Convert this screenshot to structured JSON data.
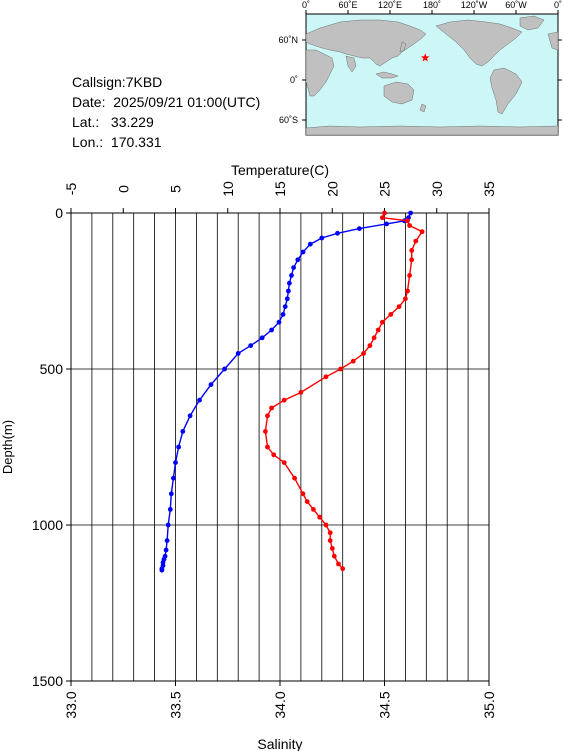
{
  "info": {
    "callsign_line": "Callsign:7KBD",
    "date_line": "Date:  2025/09/21 01:00(UTC)",
    "lat_line": "Lat.:   33.229",
    "lon_line": "Lon.:  170.331"
  },
  "map": {
    "top_labels": [
      "0˚",
      "60˚E",
      "120˚E",
      "180˚",
      "120˚W",
      "60˚W",
      "0˚"
    ],
    "side_labels": [
      "60˚N",
      "0˚",
      "60˚S"
    ],
    "station": {
      "lat": 33.229,
      "lon": 170.331
    },
    "colors": {
      "ocean": "#cdf7f7",
      "land": "#c0c0c0",
      "marker": "#ff0000"
    }
  },
  "chart_data": {
    "type": "line",
    "ylabel": "Depth(m)",
    "ylim": [
      1500,
      0
    ],
    "yticks": [
      0,
      500,
      1000,
      1500
    ],
    "x_top": {
      "label": "Temperature(C)",
      "lim": [
        -5,
        35
      ],
      "ticks": [
        -5,
        0,
        5,
        10,
        15,
        20,
        25,
        30,
        35
      ]
    },
    "x_bottom": {
      "label": "Salinity",
      "lim": [
        33.0,
        35.0
      ],
      "ticks": [
        "33.0",
        "33.5",
        "34.0",
        "34.5",
        "35.0"
      ]
    },
    "grid": true,
    "series": [
      {
        "color": "#0000ff",
        "axis": "top",
        "x": [
          27.5,
          27.3,
          26.9,
          25.2,
          22.6,
          20.5,
          19.0,
          17.9,
          17.2,
          16.7,
          16.3,
          16.1,
          15.9,
          15.8,
          15.7,
          15.5,
          15.3,
          14.9,
          14.2,
          13.3,
          12.2,
          11.0,
          9.7,
          8.4,
          7.3,
          6.4,
          5.7,
          5.3,
          5.0,
          4.8,
          4.6,
          4.5,
          4.3,
          4.2,
          4.1,
          4.0,
          3.9,
          3.8,
          3.8,
          3.7,
          3.7
        ],
        "y": [
          0,
          15,
          25,
          35,
          50,
          65,
          80,
          100,
          125,
          150,
          175,
          200,
          225,
          250,
          275,
          300,
          325,
          350,
          375,
          400,
          425,
          450,
          500,
          550,
          600,
          650,
          700,
          750,
          800,
          850,
          900,
          950,
          1000,
          1050,
          1080,
          1100,
          1110,
          1120,
          1130,
          1140,
          1145
        ]
      },
      {
        "color": "#ff0000",
        "axis": "bottom",
        "x": [
          34.5,
          34.49,
          34.61,
          34.62,
          34.68,
          34.65,
          34.63,
          34.63,
          34.62,
          34.61,
          34.6,
          34.57,
          34.53,
          34.49,
          34.47,
          34.45,
          34.43,
          34.4,
          34.35,
          34.29,
          34.22,
          34.1,
          34.02,
          33.96,
          33.94,
          33.93,
          33.94,
          33.97,
          34.02,
          34.07,
          34.11,
          34.13,
          34.16,
          34.19,
          34.22,
          34.24,
          34.24,
          34.25,
          34.26,
          34.28,
          34.3
        ],
        "y": [
          0,
          15,
          25,
          40,
          60,
          90,
          120,
          150,
          200,
          250,
          275,
          300,
          325,
          350,
          375,
          400,
          425,
          450,
          475,
          500,
          525,
          575,
          600,
          625,
          650,
          700,
          750,
          775,
          800,
          850,
          900,
          925,
          950,
          975,
          1000,
          1025,
          1050,
          1075,
          1100,
          1125,
          1140
        ]
      }
    ]
  }
}
